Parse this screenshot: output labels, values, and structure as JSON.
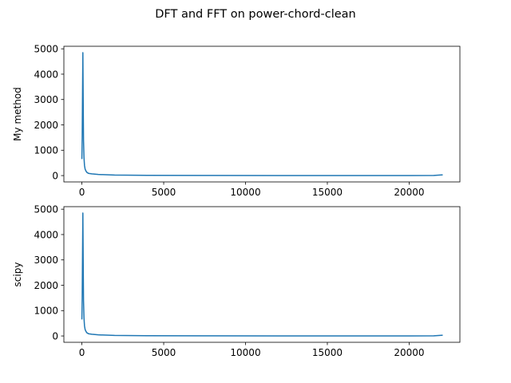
{
  "figure": {
    "suptitle": "DFT and FFT on power-chord-clean"
  },
  "chart_data": [
    {
      "type": "line",
      "title": "",
      "xlabel": "",
      "ylabel": "My method",
      "xlim": [
        -1100,
        23100
      ],
      "ylim": [
        -250,
        5100
      ],
      "xticks": [
        0,
        5000,
        10000,
        15000,
        20000
      ],
      "yticks": [
        0,
        1000,
        2000,
        3000,
        4000,
        5000
      ],
      "grid": false,
      "series_color": "#1f77b4",
      "x": [
        0,
        20,
        40,
        60,
        80,
        100,
        130,
        160,
        200,
        250,
        300,
        400,
        600,
        1000,
        2000,
        4000,
        8000,
        12000,
        16000,
        20000,
        21500,
        22050
      ],
      "values": [
        650,
        1500,
        3200,
        4850,
        3000,
        1400,
        700,
        400,
        250,
        180,
        130,
        90,
        70,
        45,
        20,
        10,
        5,
        3,
        2,
        2,
        5,
        30
      ]
    },
    {
      "type": "line",
      "title": "",
      "xlabel": "",
      "ylabel": "scipy",
      "xlim": [
        -1100,
        23100
      ],
      "ylim": [
        -250,
        5100
      ],
      "xticks": [
        0,
        5000,
        10000,
        15000,
        20000
      ],
      "yticks": [
        0,
        1000,
        2000,
        3000,
        4000,
        5000
      ],
      "grid": false,
      "series_color": "#1f77b4",
      "x": [
        0,
        20,
        40,
        60,
        80,
        100,
        130,
        160,
        200,
        250,
        300,
        400,
        600,
        1000,
        2000,
        4000,
        8000,
        12000,
        16000,
        20000,
        21500,
        22050
      ],
      "values": [
        650,
        1500,
        3200,
        4850,
        3000,
        1400,
        700,
        400,
        250,
        180,
        130,
        90,
        70,
        45,
        20,
        10,
        5,
        3,
        2,
        2,
        5,
        30
      ]
    }
  ]
}
